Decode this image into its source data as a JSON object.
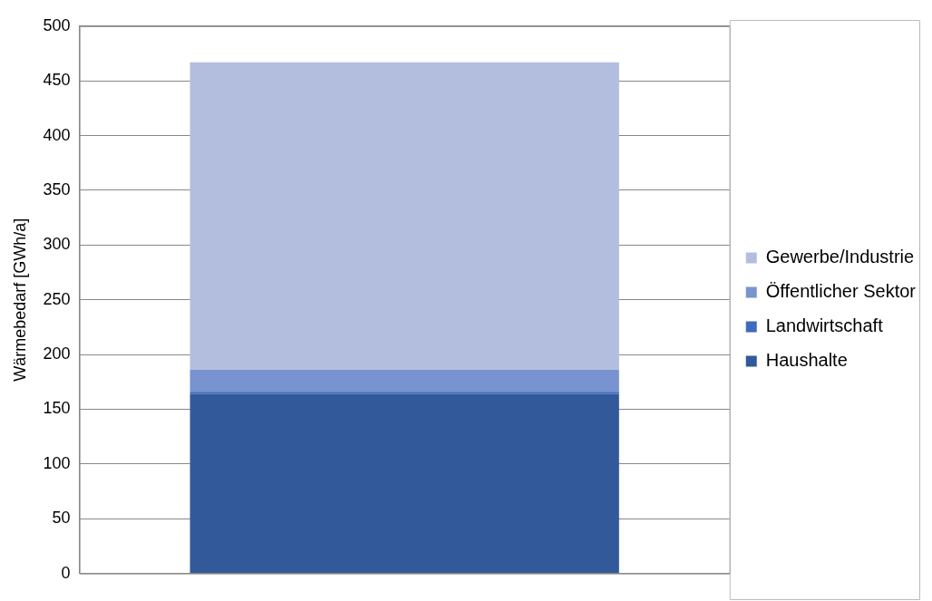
{
  "chart_data": {
    "type": "bar",
    "ylabel": "Wärmebedarf [GWh/a]",
    "categories": [
      null
    ],
    "stacked": true,
    "series": [
      {
        "name": "Haushalte",
        "color": "#325a9a",
        "values": [
          164
        ]
      },
      {
        "name": "Landwirtschaft",
        "color": "#3e6bbd",
        "values": [
          2
        ]
      },
      {
        "name": "Öffentlicher Sektor",
        "color": "#7893d0",
        "values": [
          20
        ]
      },
      {
        "name": "Gewerbe/Industrie",
        "color": "#b3bedf",
        "values": [
          281
        ]
      }
    ],
    "ylim": [
      0,
      500
    ],
    "yticks": [
      0,
      50,
      100,
      150,
      200,
      250,
      300,
      350,
      400,
      450,
      500
    ],
    "grid": "y",
    "legend": "right"
  }
}
